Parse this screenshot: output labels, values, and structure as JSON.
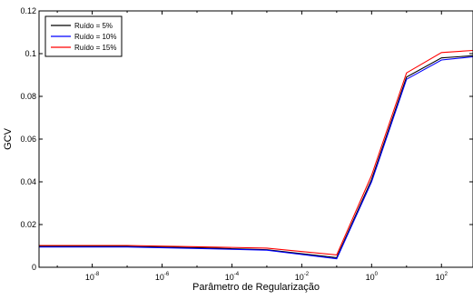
{
  "chart_data": {
    "type": "line",
    "title": "",
    "xlabel": "Parâmetro de Regularização",
    "ylabel": "GCV",
    "xscale": "log",
    "xlim": [
      3e-10,
      800
    ],
    "ylim": [
      0,
      0.12
    ],
    "x": [
      3e-10,
      1e-09,
      1e-07,
      1e-05,
      0.001,
      0.1,
      1,
      10,
      100,
      800
    ],
    "x_ticks": [
      {
        "value": 1e-08,
        "base": "10",
        "exp": "-8"
      },
      {
        "value": 1e-06,
        "base": "10",
        "exp": "-6"
      },
      {
        "value": 0.0001,
        "base": "10",
        "exp": "-4"
      },
      {
        "value": 0.01,
        "base": "10",
        "exp": "-2"
      },
      {
        "value": 1,
        "base": "10",
        "exp": "0"
      },
      {
        "value": 100,
        "base": "10",
        "exp": "2"
      }
    ],
    "y_ticks": [
      {
        "value": 0,
        "label": "0"
      },
      {
        "value": 0.02,
        "label": "0.02"
      },
      {
        "value": 0.04,
        "label": "0.04"
      },
      {
        "value": 0.06,
        "label": "0.06"
      },
      {
        "value": 0.08,
        "label": "0.08"
      },
      {
        "value": 0.1,
        "label": "0.1"
      },
      {
        "value": 0.12,
        "label": "0.12"
      }
    ],
    "series": [
      {
        "name": "Ruído = 5%",
        "color": "#000000",
        "values": [
          0.0098,
          0.0098,
          0.0098,
          0.0092,
          0.0082,
          0.0045,
          0.041,
          0.089,
          0.098,
          0.099
        ]
      },
      {
        "name": "Ruído = 10%",
        "color": "#0000ff",
        "values": [
          0.0095,
          0.0095,
          0.0095,
          0.0088,
          0.008,
          0.004,
          0.04,
          0.088,
          0.097,
          0.0985
        ]
      },
      {
        "name": "Ruído = 15%",
        "color": "#ff0000",
        "values": [
          0.0102,
          0.0102,
          0.0102,
          0.0096,
          0.009,
          0.0058,
          0.043,
          0.091,
          0.1005,
          0.1015
        ]
      }
    ],
    "grid": false,
    "legend_position": "top-left"
  }
}
